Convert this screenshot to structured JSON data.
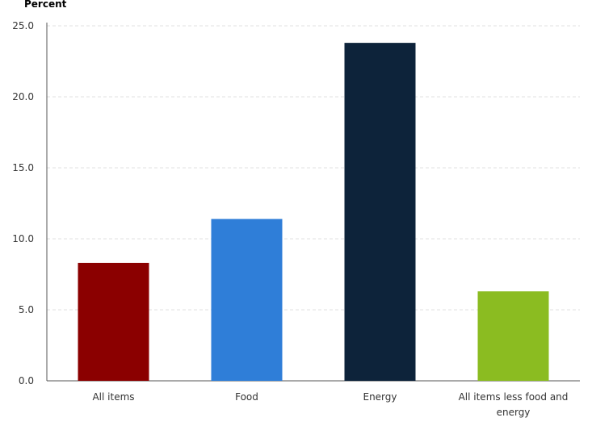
{
  "chart_data": {
    "type": "bar",
    "ylabel": "Percent",
    "xlabel": "",
    "ylim": [
      0,
      25
    ],
    "y_ticks": [
      "0.0",
      "5.0",
      "10.0",
      "15.0",
      "20.0",
      "25.0"
    ],
    "y_tick_values": [
      0,
      5,
      10,
      15,
      20,
      25
    ],
    "grid": true,
    "categories": [
      "All items",
      "Food",
      "Energy",
      "All items less food and energy"
    ],
    "values": [
      8.3,
      11.4,
      23.8,
      6.3
    ],
    "colors": [
      "#8b0000",
      "#2f7ed8",
      "#0d233a",
      "#8bbc21"
    ]
  }
}
